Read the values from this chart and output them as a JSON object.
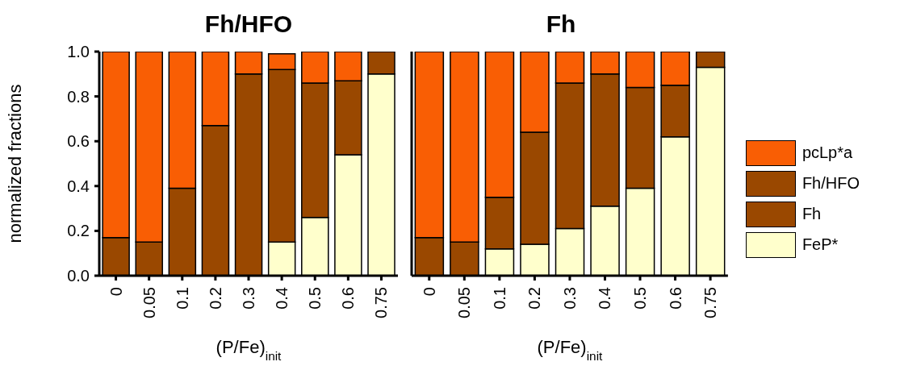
{
  "chart_data": [
    {
      "type": "bar",
      "title": "Fh/HFO",
      "xlabel": "(P/Fe)$_{init}$",
      "ylabel": "normalized fractions",
      "categories": [
        "0",
        "0.05",
        "0.1",
        "0.2",
        "0.3",
        "0.4",
        "0.5",
        "0.6",
        "0.75"
      ],
      "stacked": true,
      "ylim": [
        0,
        1.0
      ],
      "yticks": [
        {
          "value": 0,
          "label": "0.0"
        },
        0.2,
        0.4,
        0.6,
        0.8,
        {
          "value": 1.0,
          "label": "1.0"
        }
      ],
      "legend": false,
      "series": [
        {
          "color": "#ffffcc",
          "values": [
            0,
            0,
            0,
            0,
            0,
            0.15,
            0.26,
            0.54,
            0.9
          ]
        },
        {
          "color": "#9a4800",
          "values": [
            0.17,
            0.15,
            0.39,
            0.67,
            0.9,
            0.77,
            0.6,
            0.33,
            0.1
          ]
        },
        {
          "color": "#f95e04",
          "values": [
            0.83,
            0.85,
            0.61,
            0.33,
            0.1,
            0.07,
            0.14,
            0.13,
            0
          ]
        }
      ]
    },
    {
      "type": "bar",
      "title": "Fh",
      "xlabel": "(P/Fe)$_{init}$",
      "categories": [
        "0",
        "0.05",
        "0.1",
        "0.2",
        "0.3",
        "0.4",
        "0.5",
        "0.6",
        "0.75"
      ],
      "stacked": true,
      "ylim": [
        0,
        1.0
      ],
      "yticks": [
        0,
        0.2,
        0.4,
        0.6,
        0.8,
        1.0
      ],
      "tick_labels": "x",
      "legend": "right",
      "series": [
        {
          "name": "FeP*",
          "color": "#ffffcc",
          "values": [
            0,
            0,
            0.12,
            0.14,
            0.21,
            0.31,
            0.39,
            0.62,
            0.93
          ]
        },
        {
          "name": "Fh",
          "color": "#9a4800",
          "values": [
            0.17,
            0.15,
            0.23,
            0.5,
            0.65,
            0.59,
            0.45,
            0.23,
            0.07
          ]
        },
        {
          "name": "Fh/HFO",
          "color": "#9a4800",
          "values": [
            0,
            0,
            0,
            0,
            0,
            0,
            0,
            0,
            0
          ]
        },
        {
          "name": "pcLp*a",
          "color": "#f95e04",
          "values": [
            0.83,
            0.85,
            0.65,
            0.36,
            0.14,
            0.1,
            0.16,
            0.15,
            0
          ]
        }
      ]
    }
  ]
}
